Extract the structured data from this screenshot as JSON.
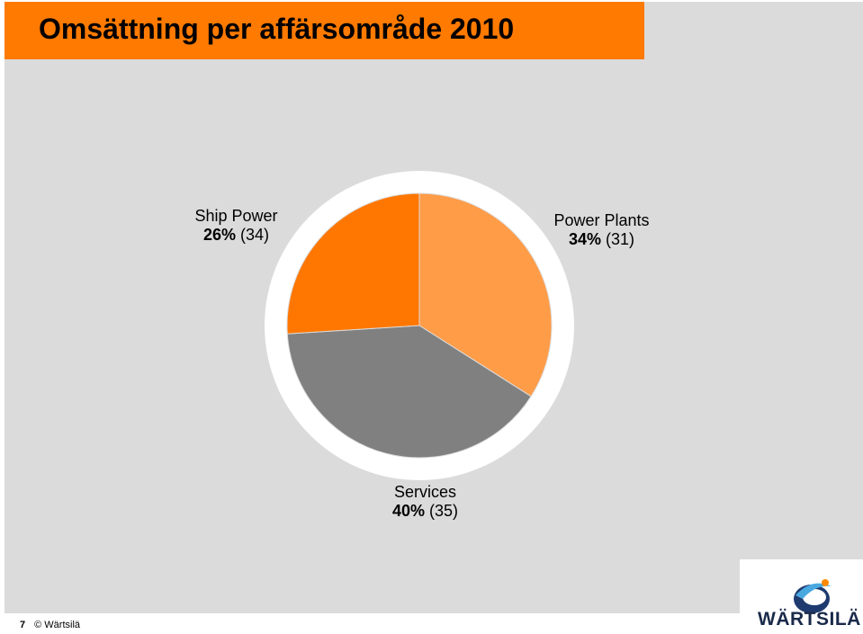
{
  "title": "Omsättning per affärsområde 2010",
  "footer": {
    "page": "7",
    "copyright": "© Wärtsilä"
  },
  "logo": {
    "text": "WÄRTSILÄ",
    "icon": "wartsila-swoosh-logo"
  },
  "colors": {
    "accent": "#ff7a00",
    "background": "#dbdbdb",
    "ship_power": "#ff7700",
    "power_plants": "#ff9c48",
    "services": "#808080"
  },
  "chart_data": {
    "type": "pie",
    "title": "Omsättning per affärsområde 2010",
    "slices": [
      {
        "name": "Power Plants",
        "value": 34,
        "percent_label": "34%",
        "prev_label": "(31)",
        "color": "#ff9c48"
      },
      {
        "name": "Services",
        "value": 40,
        "percent_label": "40%",
        "prev_label": "(35)",
        "color": "#808080"
      },
      {
        "name": "Ship Power",
        "value": 26,
        "percent_label": "26%",
        "prev_label": "(34)",
        "color": "#ff7700"
      }
    ],
    "start": "12 o'clock",
    "direction": "clockwise"
  }
}
